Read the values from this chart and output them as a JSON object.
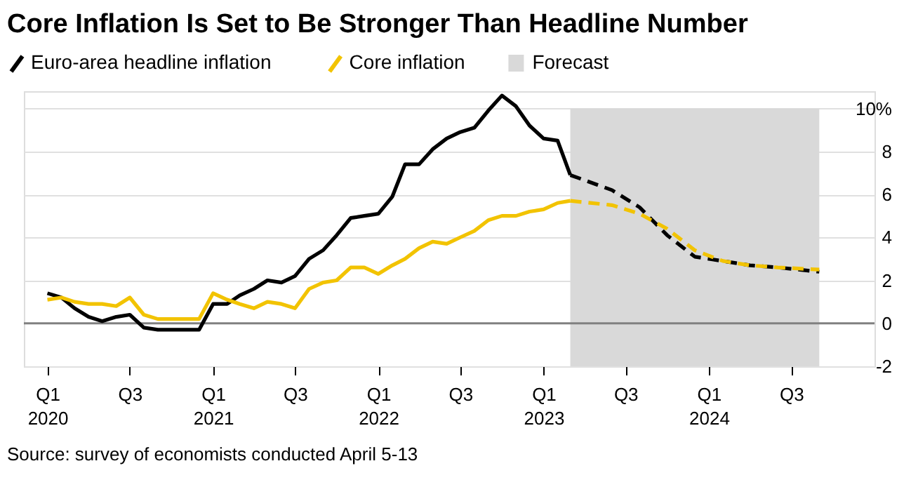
{
  "chart_data": {
    "type": "line",
    "title": "Core Inflation Is Set to Be Stronger Than Headline Number",
    "annotations": [
      "Source: survey of economists conducted April 5-13"
    ],
    "series": [
      {
        "name": "Euro-area headline inflation",
        "color": "#000000",
        "line_style": "solid",
        "x": [
          "2020-01",
          "2020-02",
          "2020-03",
          "2020-04",
          "2020-05",
          "2020-06",
          "2020-07",
          "2020-08",
          "2020-09",
          "2020-10",
          "2020-11",
          "2020-12",
          "2021-01",
          "2021-02",
          "2021-03",
          "2021-04",
          "2021-05",
          "2021-06",
          "2021-07",
          "2021-08",
          "2021-09",
          "2021-10",
          "2021-11",
          "2021-12",
          "2022-01",
          "2022-02",
          "2022-03",
          "2022-04",
          "2022-05",
          "2022-06",
          "2022-07",
          "2022-08",
          "2022-09",
          "2022-10",
          "2022-11",
          "2022-12",
          "2023-01",
          "2023-02",
          "2023-03"
        ],
        "values": [
          1.4,
          1.2,
          0.7,
          0.3,
          0.1,
          0.3,
          0.4,
          -0.2,
          -0.3,
          -0.3,
          -0.3,
          -0.3,
          0.9,
          0.9,
          1.3,
          1.6,
          2.0,
          1.9,
          2.2,
          3.0,
          3.4,
          4.1,
          4.9,
          5.0,
          5.1,
          5.9,
          7.4,
          7.4,
          8.1,
          8.6,
          8.9,
          9.1,
          9.9,
          10.6,
          10.1,
          9.2,
          8.6,
          8.5,
          6.9
        ]
      },
      {
        "color": "#000000",
        "line_style": "dashed",
        "x": [
          "2023-03",
          "2023-06",
          "2023-08",
          "2023-10",
          "2023-12",
          "2024-02",
          "2024-04",
          "2024-06",
          "2024-09"
        ],
        "values": [
          6.9,
          6.2,
          5.4,
          4.1,
          3.1,
          2.9,
          2.7,
          2.6,
          2.4
        ]
      },
      {
        "name": "Core inflation",
        "color": "#f2c300",
        "line_style": "solid",
        "x": [
          "2020-01",
          "2020-02",
          "2020-03",
          "2020-04",
          "2020-05",
          "2020-06",
          "2020-07",
          "2020-08",
          "2020-09",
          "2020-10",
          "2020-11",
          "2020-12",
          "2021-01",
          "2021-02",
          "2021-03",
          "2021-04",
          "2021-05",
          "2021-06",
          "2021-07",
          "2021-08",
          "2021-09",
          "2021-10",
          "2021-11",
          "2021-12",
          "2022-01",
          "2022-02",
          "2022-03",
          "2022-04",
          "2022-05",
          "2022-06",
          "2022-07",
          "2022-08",
          "2022-09",
          "2022-10",
          "2022-11",
          "2022-12",
          "2023-01",
          "2023-02",
          "2023-03"
        ],
        "values": [
          1.1,
          1.2,
          1.0,
          0.9,
          0.9,
          0.8,
          1.2,
          0.4,
          0.2,
          0.2,
          0.2,
          0.2,
          1.4,
          1.1,
          0.9,
          0.7,
          1.0,
          0.9,
          0.7,
          1.6,
          1.9,
          2.0,
          2.6,
          2.6,
          2.3,
          2.7,
          3.0,
          3.5,
          3.8,
          3.7,
          4.0,
          4.3,
          4.8,
          5.0,
          5.0,
          5.2,
          5.3,
          5.6,
          5.7
        ]
      },
      {
        "color": "#f2c300",
        "line_style": "dashed",
        "x": [
          "2023-03",
          "2023-06",
          "2023-08",
          "2023-10",
          "2023-12",
          "2024-02",
          "2024-04",
          "2024-06",
          "2024-09"
        ],
        "values": [
          5.7,
          5.5,
          5.1,
          4.4,
          3.4,
          2.9,
          2.7,
          2.6,
          2.5
        ]
      }
    ],
    "bands": [
      {
        "axis": "x",
        "from": "2023-03",
        "to": "2024-09",
        "label": "Forecast",
        "color": "#d9d9d9"
      }
    ],
    "ref_lines": [
      {
        "axis": "y",
        "value": 0,
        "color": "#808080"
      }
    ],
    "xlim": [
      "2019-11-10",
      "2025-01-01"
    ],
    "xticks": [
      {
        "value": "2020-01",
        "label": "Q1 2020"
      },
      {
        "value": "2020-07",
        "label": "Q3"
      },
      {
        "value": "2021-01",
        "label": "Q1 2021"
      },
      {
        "value": "2021-07",
        "label": "Q3"
      },
      {
        "value": "2022-01",
        "label": "Q1 2022"
      },
      {
        "value": "2022-07",
        "label": "Q3"
      },
      {
        "value": "2023-01",
        "label": "Q1 2023"
      },
      {
        "value": "2023-07",
        "label": "Q3"
      },
      {
        "value": "2024-01",
        "label": "Q1 2024"
      },
      {
        "value": "2024-07",
        "label": "Q3"
      }
    ],
    "ylim": [
      -2,
      10.8
    ],
    "yticks": [
      -2,
      0,
      2,
      4,
      6,
      8,
      {
        "value": 10,
        "label": "10%"
      }
    ],
    "grid": "y",
    "legend": "top left"
  }
}
